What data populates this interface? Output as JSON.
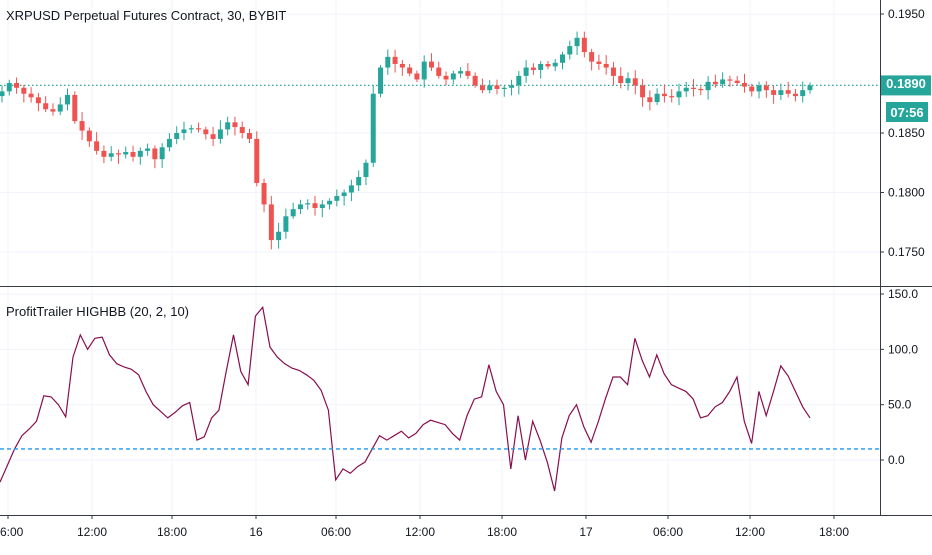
{
  "main_chart": {
    "title": "XRPUSD Perpetual Futures Contract, 30, BYBIT",
    "last_price_label": "0.1890",
    "countdown_label": "07:56",
    "colors": {
      "up": "#26a69a",
      "down": "#ef5350",
      "last_line": "#26a69a",
      "price_badge": "#26a69a"
    }
  },
  "indicator": {
    "title": "ProfitTrailer HIGHBB (20, 2, 10)",
    "threshold_value": 10,
    "colors": {
      "line": "#880e4f",
      "threshold": "#2196f3"
    }
  },
  "time_axis": {
    "labels": [
      "6:00",
      "12:00",
      "18:00",
      "16",
      "06:00",
      "12:00",
      "18:00",
      "17",
      "06:00",
      "12:00",
      "18:00"
    ]
  },
  "chart_data": [
    {
      "type": "candlestick",
      "title": "XRPUSD Perpetual Futures Contract, 30, BYBIT",
      "y_ticks": [
        0.175,
        0.18,
        0.185,
        0.189,
        0.195
      ],
      "y_tick_labels": [
        "0.1750",
        "0.1800",
        "0.1850",
        "0.1890",
        "0.1950"
      ],
      "ylim": [
        0.1725,
        0.1965
      ],
      "last_price": 0.189,
      "candles_close": [
        0.1885,
        0.1892,
        0.1888,
        0.1883,
        0.188,
        0.1875,
        0.187,
        0.1868,
        0.1874,
        0.1882,
        0.186,
        0.1852,
        0.1843,
        0.1835,
        0.183,
        0.1833,
        0.1832,
        0.1834,
        0.183,
        0.1835,
        0.1837,
        0.1828,
        0.1838,
        0.1845,
        0.185,
        0.1853,
        0.1854,
        0.1853,
        0.1849,
        0.1845,
        0.1853,
        0.1859,
        0.1855,
        0.185,
        0.1845,
        0.1808,
        0.179,
        0.176,
        0.1767,
        0.178,
        0.1786,
        0.179,
        0.1791,
        0.1787,
        0.179,
        0.1793,
        0.1797,
        0.18,
        0.1806,
        0.1813,
        0.1825,
        0.1883,
        0.1905,
        0.1914,
        0.1908,
        0.1905,
        0.19,
        0.1895,
        0.191,
        0.1905,
        0.1898,
        0.1895,
        0.19,
        0.1902,
        0.1898,
        0.189,
        0.1886,
        0.189,
        0.1887,
        0.1888,
        0.189,
        0.1898,
        0.1905,
        0.1903,
        0.1908,
        0.1906,
        0.1909,
        0.1916,
        0.1923,
        0.193,
        0.1918,
        0.191,
        0.1908,
        0.1905,
        0.1898,
        0.1892,
        0.1896,
        0.189,
        0.188,
        0.1876,
        0.1883,
        0.1881,
        0.188,
        0.1885,
        0.1888,
        0.1887,
        0.1886,
        0.1893,
        0.1891,
        0.1895,
        0.1894,
        0.1892,
        0.1889,
        0.1885,
        0.189,
        0.1886,
        0.1882,
        0.1886,
        0.1883,
        0.1881,
        0.1886,
        0.189
      ]
    },
    {
      "type": "line",
      "title": "ProfitTrailer HIGHBB (20, 2, 10)",
      "y_ticks": [
        0,
        50,
        100,
        150
      ],
      "y_tick_labels": [
        "0.0",
        "50.0",
        "100.0",
        "150.0"
      ],
      "ylim": [
        -45,
        155
      ],
      "threshold": 10,
      "values": [
        -20,
        -5,
        10,
        22,
        28,
        35,
        58,
        57,
        50,
        39,
        93,
        113,
        100,
        110,
        111,
        95,
        87,
        84,
        82,
        77,
        62,
        50,
        44,
        38,
        43,
        49,
        52,
        18,
        21,
        38,
        45,
        80,
        113,
        80,
        68,
        130,
        138,
        102,
        93,
        87,
        83,
        81,
        77,
        72,
        63,
        45,
        -18,
        -8,
        -12,
        -6,
        -2,
        10,
        22,
        18,
        22,
        26,
        20,
        24,
        32,
        36,
        34,
        32,
        24,
        18,
        40,
        55,
        57,
        86,
        62,
        50,
        -8,
        40,
        0,
        35,
        18,
        -2,
        -28,
        20,
        40,
        50,
        30,
        16,
        35,
        56,
        75,
        75,
        68,
        110,
        90,
        75,
        95,
        78,
        68,
        65,
        62,
        55,
        38,
        40,
        48,
        52,
        62,
        75,
        35,
        15,
        62,
        40,
        62,
        85,
        76,
        62,
        48,
        38
      ]
    }
  ]
}
